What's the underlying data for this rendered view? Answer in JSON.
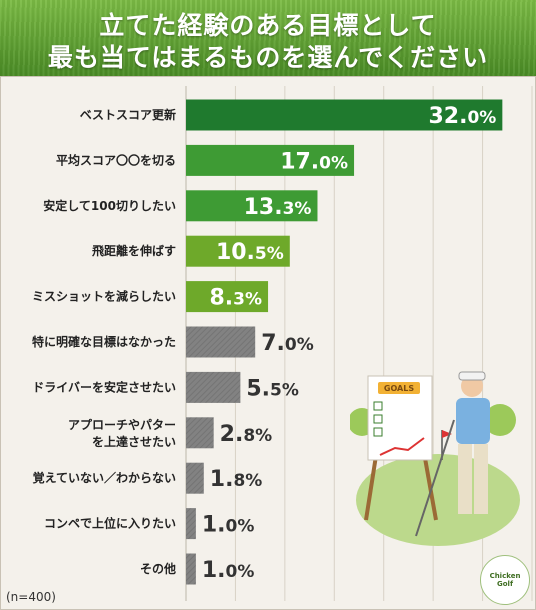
{
  "header": {
    "title_line1": "立てた経験のある目標として",
    "title_line2": "最も当てはまるものを選んでください"
  },
  "note": "(n=400)",
  "logo": {
    "line1": "Chicken",
    "line2": "Golf"
  },
  "illustration": {
    "board_label": "GOALS"
  },
  "chart_data": {
    "type": "bar",
    "orientation": "horizontal",
    "title": "立てた経験のある目標として最も当てはまるものを選んでください",
    "categories": [
      "ベストスコア更新",
      "平均スコア〇〇を切る",
      "安定して100切りしたい",
      "飛距離を伸ばす",
      "ミスショットを減らしたい",
      "特に明確な目標はなかった",
      "ドライバーを安定させたい",
      "アプローチやパターを上達させたい",
      "覚えていない／わからない",
      "コンペで上位に入りたい",
      "その他"
    ],
    "values": [
      32.0,
      17.0,
      13.3,
      10.5,
      8.3,
      7.0,
      5.5,
      2.8,
      1.8,
      1.0,
      1.0
    ],
    "labels": [
      "32.0%",
      "17.0%",
      "13.3%",
      "10.5%",
      "8.3%",
      "7.0%",
      "5.5%",
      "2.8%",
      "1.8%",
      "1.0%",
      "1.0%"
    ],
    "unit": "%",
    "xlim": [
      0,
      35
    ],
    "grid": true,
    "colors": {
      "top": "#1f7a2e",
      "green": "#3e9b34",
      "light_green": "#6ea92a",
      "gray": "#828282"
    },
    "bar_colors": [
      "top",
      "green",
      "green",
      "light_green",
      "light_green",
      "gray",
      "gray",
      "gray",
      "gray",
      "gray",
      "gray"
    ]
  }
}
